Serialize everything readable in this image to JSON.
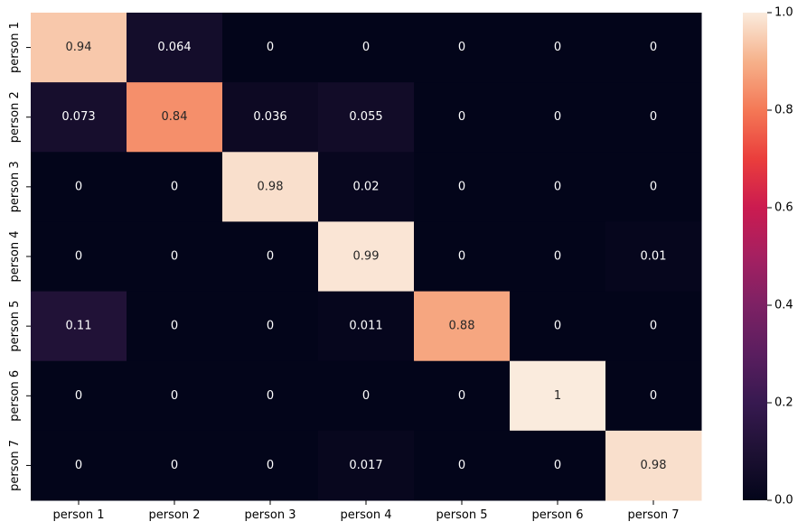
{
  "chart_data": {
    "type": "heatmap",
    "x_labels": [
      "person 1",
      "person 2",
      "person 3",
      "person 4",
      "person 5",
      "person 6",
      "person 7"
    ],
    "y_labels": [
      "person 1",
      "person 2",
      "person 3",
      "person 4",
      "person 5",
      "person 6",
      "person 7"
    ],
    "matrix": [
      [
        0.94,
        0.064,
        0,
        0,
        0,
        0,
        0
      ],
      [
        0.073,
        0.84,
        0.036,
        0.055,
        0,
        0,
        0
      ],
      [
        0,
        0,
        0.98,
        0.02,
        0,
        0,
        0
      ],
      [
        0,
        0,
        0,
        0.99,
        0,
        0,
        0.01
      ],
      [
        0.11,
        0,
        0,
        0.011,
        0.88,
        0,
        0
      ],
      [
        0,
        0,
        0,
        0,
        0,
        1,
        0
      ],
      [
        0,
        0,
        0,
        0.017,
        0,
        0,
        0.98
      ]
    ],
    "cell_labels": [
      [
        "0.94",
        "0.064",
        "0",
        "0",
        "0",
        "0",
        "0"
      ],
      [
        "0.073",
        "0.84",
        "0.036",
        "0.055",
        "0",
        "0",
        "0"
      ],
      [
        "0",
        "0",
        "0.98",
        "0.02",
        "0",
        "0",
        "0"
      ],
      [
        "0",
        "0",
        "0",
        "0.99",
        "0",
        "0",
        "0.01"
      ],
      [
        "0.11",
        "0",
        "0",
        "0.011",
        "0.88",
        "0",
        "0"
      ],
      [
        "0",
        "0",
        "0",
        "0",
        "0",
        "1",
        "0"
      ],
      [
        "0",
        "0",
        "0",
        "0.017",
        "0",
        "0",
        "0.98"
      ]
    ],
    "colorbar": {
      "range": [
        0,
        1
      ],
      "ticks": [
        0,
        0.2,
        0.4,
        0.6,
        0.8,
        1.0
      ],
      "tick_labels": [
        "0.0",
        "0.2",
        "0.4",
        "0.6",
        "0.8",
        "1.0"
      ],
      "colormap": "rocket"
    },
    "title": "",
    "xlabel": "",
    "ylabel": ""
  }
}
